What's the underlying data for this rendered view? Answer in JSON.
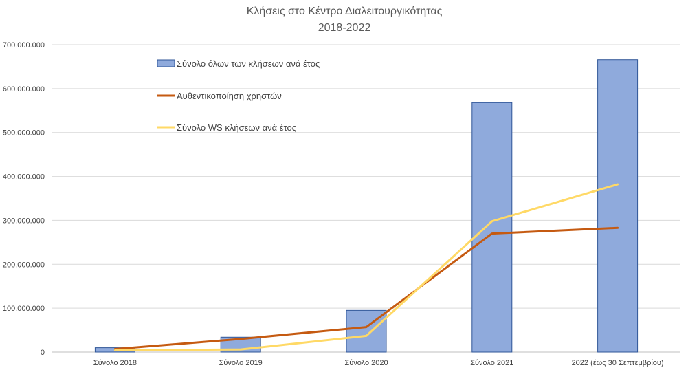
{
  "chart_data": {
    "type": "bar",
    "title_line1": "Κλήσεις στο Κέντρο Διαλειτουργικότητας",
    "title_line2": "2018-2022",
    "categories": [
      "Σύνολο 2018",
      "Σύνολο 2019",
      "Σύνολο 2020",
      "Σύνολο 2021",
      "2022 (έως 30 Σεπτεμβρίου)"
    ],
    "ylim": [
      0,
      700000000
    ],
    "y_ticks": [
      {
        "value": 0,
        "label": "0"
      },
      {
        "value": 100000000,
        "label": "100.000.000"
      },
      {
        "value": 200000000,
        "label": "200.000.000"
      },
      {
        "value": 300000000,
        "label": "300.000.000"
      },
      {
        "value": 400000000,
        "label": "400.000.000"
      },
      {
        "value": 500000000,
        "label": "500.000.000"
      },
      {
        "value": 600000000,
        "label": "600.000.000"
      },
      {
        "value": 700000000,
        "label": "700.000.000"
      }
    ],
    "grid": true,
    "legend_position": "top-left inside",
    "series": [
      {
        "name": "Σύνολο όλων των κλήσεων ανά έτος",
        "kind": "bar",
        "color": "#8faadc",
        "stroke": "#2f5597",
        "values": [
          10000000,
          34000000,
          95000000,
          568000000,
          666000000
        ]
      },
      {
        "name": "Αυθεντικοποίηση χρηστών",
        "kind": "line",
        "color": "#c55a11",
        "values": [
          7000000,
          30000000,
          57000000,
          270000000,
          283000000
        ]
      },
      {
        "name": "Σύνολο WS κλήσεων ανά έτος",
        "kind": "line",
        "color": "#ffd966",
        "values": [
          4000000,
          6000000,
          37000000,
          298000000,
          382000000
        ]
      }
    ]
  }
}
